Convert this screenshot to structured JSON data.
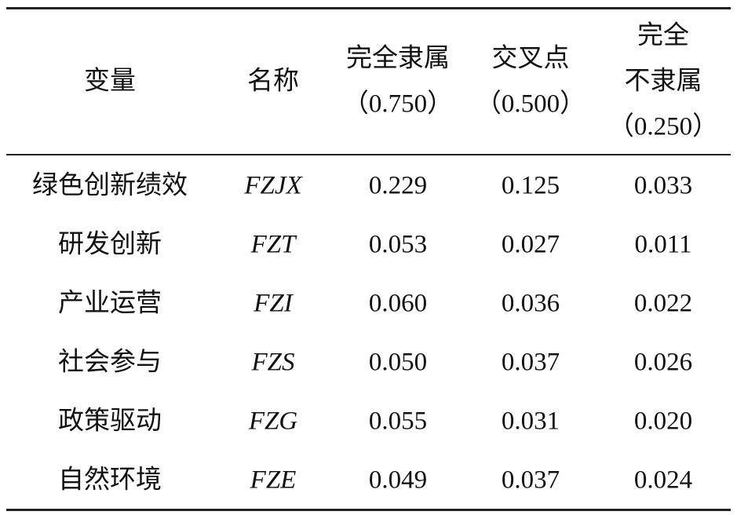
{
  "table": {
    "header": [
      [
        "变量"
      ],
      [
        "名称"
      ],
      [
        "完全隶属",
        "（0.750）"
      ],
      [
        "交叉点",
        "（0.500）"
      ],
      [
        "完全",
        "不隶属",
        "（0.250）"
      ]
    ],
    "rows": [
      [
        "绿色创新绩效",
        "FZJX",
        "0.229",
        "0.125",
        "0.033"
      ],
      [
        "研发创新",
        "FZT",
        "0.053",
        "0.027",
        "0.011"
      ],
      [
        "产业运营",
        "FZI",
        "0.060",
        "0.036",
        "0.022"
      ],
      [
        "社会参与",
        "FZS",
        "0.050",
        "0.037",
        "0.026"
      ],
      [
        "政策驱动",
        "FZG",
        "0.055",
        "0.031",
        "0.020"
      ],
      [
        "自然环境",
        "FZE",
        "0.049",
        "0.037",
        "0.024"
      ]
    ]
  }
}
